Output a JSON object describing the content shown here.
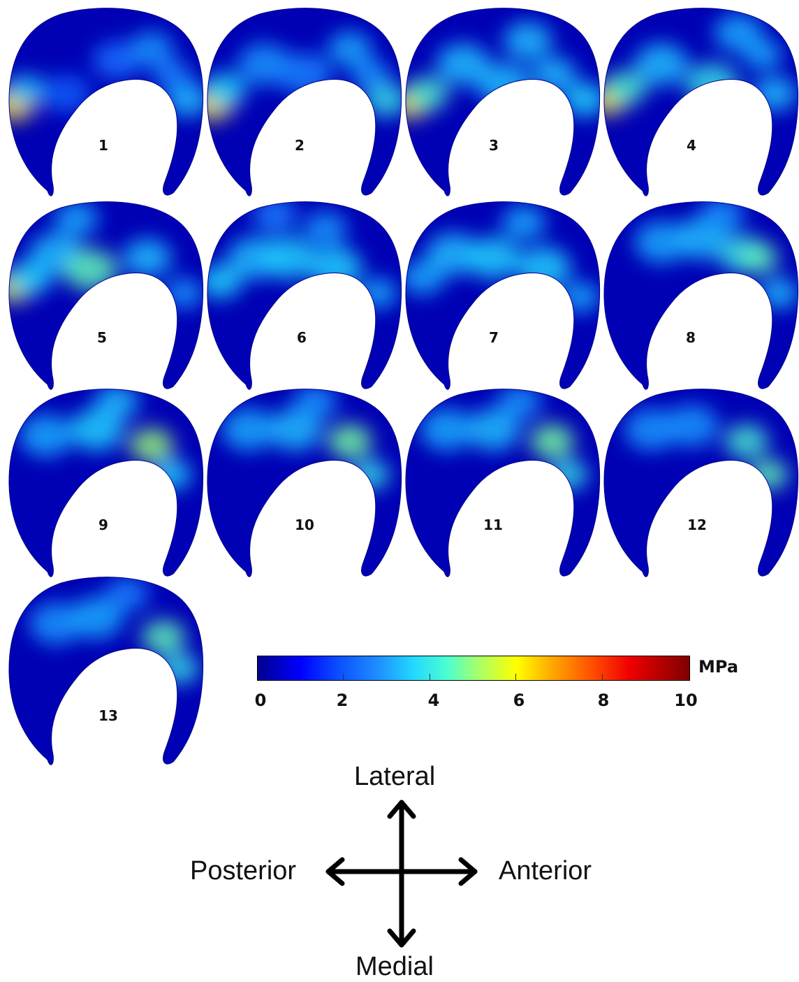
{
  "panels": [
    {
      "label": "1",
      "hot": [
        [
          0.04,
          0.5,
          1.0,
          0.45
        ],
        [
          0.1,
          0.43,
          0.55,
          0.4
        ],
        [
          0.3,
          0.45,
          0.3,
          0.5
        ],
        [
          0.55,
          0.28,
          0.35,
          0.5
        ],
        [
          0.72,
          0.22,
          0.45,
          0.45
        ],
        [
          0.9,
          0.48,
          0.55,
          0.45
        ],
        [
          0.82,
          0.35,
          0.4,
          0.4
        ]
      ]
    },
    {
      "label": "2",
      "hot": [
        [
          0.04,
          0.5,
          1.0,
          0.45
        ],
        [
          0.1,
          0.43,
          0.6,
          0.45
        ],
        [
          0.3,
          0.3,
          0.45,
          0.55
        ],
        [
          0.5,
          0.35,
          0.4,
          0.55
        ],
        [
          0.72,
          0.22,
          0.5,
          0.45
        ],
        [
          0.9,
          0.48,
          0.65,
          0.45
        ],
        [
          0.82,
          0.35,
          0.45,
          0.4
        ]
      ]
    },
    {
      "label": "3",
      "hot": [
        [
          0.04,
          0.5,
          1.2,
          0.4
        ],
        [
          0.12,
          0.45,
          0.7,
          0.45
        ],
        [
          0.3,
          0.3,
          0.55,
          0.55
        ],
        [
          0.5,
          0.4,
          0.55,
          0.55
        ],
        [
          0.62,
          0.18,
          0.55,
          0.5
        ],
        [
          0.75,
          0.35,
          0.55,
          0.45
        ],
        [
          0.9,
          0.48,
          0.6,
          0.45
        ]
      ]
    },
    {
      "label": "4",
      "hot": [
        [
          0.04,
          0.48,
          1.15,
          0.4
        ],
        [
          0.12,
          0.42,
          0.7,
          0.45
        ],
        [
          0.3,
          0.3,
          0.55,
          0.55
        ],
        [
          0.55,
          0.4,
          0.65,
          0.55
        ],
        [
          0.68,
          0.14,
          0.5,
          0.5
        ],
        [
          0.86,
          0.45,
          0.55,
          0.45
        ],
        [
          0.8,
          0.25,
          0.5,
          0.4
        ]
      ]
    },
    {
      "label": "5",
      "hot": [
        [
          0.04,
          0.45,
          0.95,
          0.4
        ],
        [
          0.12,
          0.4,
          0.6,
          0.45
        ],
        [
          0.25,
          0.28,
          0.55,
          0.55
        ],
        [
          0.42,
          0.36,
          0.75,
          0.55
        ],
        [
          0.35,
          0.1,
          0.5,
          0.45
        ],
        [
          0.7,
          0.3,
          0.55,
          0.5
        ],
        [
          0.88,
          0.48,
          0.45,
          0.4
        ]
      ]
    },
    {
      "label": "6",
      "hot": [
        [
          0.08,
          0.42,
          0.6,
          0.45
        ],
        [
          0.25,
          0.3,
          0.55,
          0.55
        ],
        [
          0.42,
          0.3,
          0.6,
          0.55
        ],
        [
          0.35,
          0.08,
          0.4,
          0.45
        ],
        [
          0.65,
          0.35,
          0.6,
          0.55
        ],
        [
          0.86,
          0.48,
          0.5,
          0.4
        ],
        [
          0.6,
          0.15,
          0.45,
          0.45
        ]
      ]
    },
    {
      "label": "7",
      "hot": [
        [
          0.1,
          0.4,
          0.5,
          0.45
        ],
        [
          0.25,
          0.28,
          0.55,
          0.55
        ],
        [
          0.45,
          0.3,
          0.6,
          0.55
        ],
        [
          0.6,
          0.12,
          0.5,
          0.45
        ],
        [
          0.7,
          0.35,
          0.6,
          0.55
        ],
        [
          0.88,
          0.5,
          0.5,
          0.4
        ]
      ]
    },
    {
      "label": "8",
      "hot": [
        [
          0.3,
          0.22,
          0.5,
          0.55
        ],
        [
          0.5,
          0.2,
          0.55,
          0.55
        ],
        [
          0.7,
          0.28,
          0.65,
          0.5
        ],
        [
          0.78,
          0.3,
          0.75,
          0.4
        ],
        [
          0.88,
          0.48,
          0.55,
          0.4
        ],
        [
          0.6,
          0.08,
          0.45,
          0.45
        ]
      ]
    },
    {
      "label": "9",
      "hot": [
        [
          0.2,
          0.25,
          0.5,
          0.55
        ],
        [
          0.45,
          0.22,
          0.6,
          0.55
        ],
        [
          0.55,
          0.08,
          0.55,
          0.45
        ],
        [
          0.72,
          0.3,
          0.85,
          0.45
        ],
        [
          0.82,
          0.45,
          0.6,
          0.4
        ]
      ]
    },
    {
      "label": "10",
      "hot": [
        [
          0.22,
          0.22,
          0.5,
          0.55
        ],
        [
          0.45,
          0.22,
          0.55,
          0.55
        ],
        [
          0.55,
          0.08,
          0.45,
          0.45
        ],
        [
          0.72,
          0.28,
          0.8,
          0.45
        ],
        [
          0.82,
          0.45,
          0.65,
          0.4
        ]
      ]
    },
    {
      "label": "11",
      "hot": [
        [
          0.22,
          0.22,
          0.5,
          0.55
        ],
        [
          0.45,
          0.22,
          0.55,
          0.55
        ],
        [
          0.58,
          0.08,
          0.45,
          0.45
        ],
        [
          0.74,
          0.28,
          0.8,
          0.45
        ],
        [
          0.82,
          0.45,
          0.65,
          0.4
        ]
      ]
    },
    {
      "label": "12",
      "hot": [
        [
          0.25,
          0.22,
          0.45,
          0.55
        ],
        [
          0.45,
          0.2,
          0.45,
          0.55
        ],
        [
          0.72,
          0.28,
          0.7,
          0.45
        ],
        [
          0.83,
          0.45,
          0.75,
          0.4
        ]
      ]
    },
    {
      "label": "13",
      "hot": [
        [
          0.25,
          0.25,
          0.45,
          0.55
        ],
        [
          0.45,
          0.22,
          0.5,
          0.55
        ],
        [
          0.6,
          0.1,
          0.4,
          0.45
        ],
        [
          0.78,
          0.32,
          0.75,
          0.45
        ],
        [
          0.86,
          0.48,
          0.65,
          0.4
        ]
      ]
    }
  ],
  "colorbar": {
    "ticks": [
      "0",
      "2",
      "4",
      "6",
      "8",
      "10"
    ],
    "min": 0,
    "max": 10,
    "unit": "MPa",
    "colormap": [
      "#00008f",
      "#0000ff",
      "#1f8fff",
      "#22d8ff",
      "#a6ff6a",
      "#ffff00",
      "#ffaa00",
      "#f00000",
      "#800000"
    ]
  },
  "orientation": {
    "up": "Lateral",
    "down": "Medial",
    "left": "Posterior",
    "right": "Anterior"
  }
}
